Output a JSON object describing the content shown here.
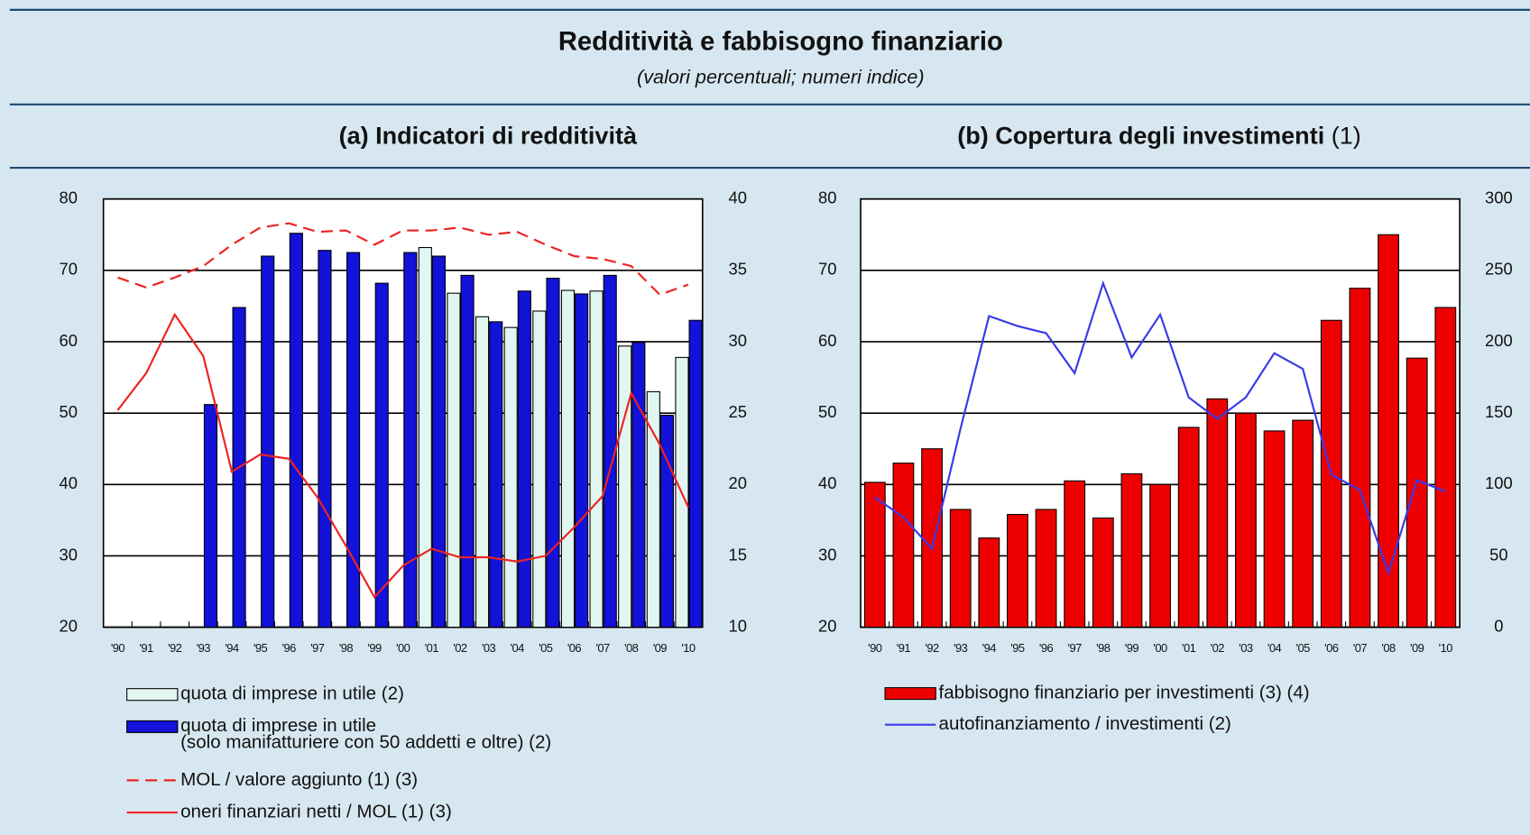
{
  "header": {
    "title": "Redditività e fabbisogno finanziario",
    "subtitle": "(valori percentuali; numeri indice)"
  },
  "chart_data": [
    {
      "type": "bar",
      "title": "(a) Indicatori di redditività",
      "categories": [
        "'90",
        "'91",
        "'92",
        "'93",
        "'94",
        "'95",
        "'96",
        "'97",
        "'98",
        "'99",
        "'00",
        "'01",
        "'02",
        "'03",
        "'04",
        "'05",
        "'06",
        "'07",
        "'08",
        "'09",
        "'10"
      ],
      "ylim": [
        20,
        80
      ],
      "yticks": [
        20,
        30,
        40,
        50,
        60,
        70,
        80
      ],
      "y2lim": [
        10,
        40
      ],
      "y2ticks": [
        10,
        15,
        20,
        25,
        30,
        35,
        40
      ],
      "grid": true,
      "series": [
        {
          "name": "quota di imprese in utile (2)",
          "type": "bar",
          "color": "#e2f6f1",
          "values": [
            null,
            null,
            null,
            null,
            null,
            null,
            null,
            null,
            null,
            null,
            null,
            73.2,
            66.8,
            63.5,
            62,
            64.3,
            67.2,
            67.1,
            59.4,
            53,
            57.8
          ]
        },
        {
          "name": "quota di imprese in utile\n(solo manifatturiere con 50 addetti e oltre) (2)",
          "type": "bar",
          "color": "#1212d8",
          "values": [
            null,
            null,
            null,
            51.2,
            64.8,
            72,
            75.2,
            72.8,
            72.5,
            68.2,
            72.5,
            72,
            69.3,
            62.8,
            67.1,
            68.9,
            66.7,
            69.3,
            59.9,
            49.7,
            63
          ]
        },
        {
          "name": "MOL / valore aggiunto (1) (3)",
          "type": "line",
          "dash": true,
          "axis": "y2",
          "color": "#ee2222",
          "values": [
            34.5,
            33.8,
            34.5,
            35.3,
            36.8,
            38,
            38.3,
            37.7,
            37.8,
            36.8,
            37.8,
            37.8,
            38,
            37.5,
            37.7,
            36.8,
            36,
            35.8,
            35.3,
            33.3,
            34
          ]
        },
        {
          "name": "oneri finanziari netti / MOL (1) (3)",
          "type": "line",
          "axis": "y2",
          "color": "#ee2222",
          "values": [
            25.2,
            27.8,
            31.9,
            29,
            20.9,
            22.1,
            21.8,
            19.1,
            15.7,
            12.1,
            14.3,
            15.5,
            14.9,
            14.9,
            14.6,
            15,
            17,
            19.2,
            26.4,
            22.8,
            18.4
          ]
        }
      ]
    },
    {
      "type": "bar",
      "title": "(b) Copertura degli investimenti",
      "title_note": "(1)",
      "categories": [
        "'90",
        "'91",
        "'92",
        "'93",
        "'94",
        "'95",
        "'96",
        "'97",
        "'98",
        "'99",
        "'00",
        "'01",
        "'02",
        "'03",
        "'04",
        "'05",
        "'06",
        "'07",
        "'08",
        "'09",
        "'10"
      ],
      "ylim": [
        20,
        80
      ],
      "yticks": [
        20,
        30,
        40,
        50,
        60,
        70,
        80
      ],
      "y2lim": [
        0,
        300
      ],
      "y2ticks": [
        0,
        50,
        100,
        150,
        200,
        250,
        300
      ],
      "grid": true,
      "series": [
        {
          "name": "fabbisogno finanziario per investimenti (3) (4)",
          "type": "bar",
          "color": "#ee0000",
          "values": [
            40.3,
            43,
            45,
            36.5,
            32.5,
            35.8,
            36.5,
            40.5,
            35.3,
            41.5,
            40,
            48,
            52,
            50,
            47.5,
            49,
            63,
            67.5,
            75,
            57.7,
            64.8
          ]
        },
        {
          "name": "autofinanziamento / investimenti (2)",
          "type": "line",
          "axis": "y2",
          "color": "#3a3ae8",
          "values": [
            91,
            77,
            55,
            139,
            218,
            211,
            206,
            178,
            241,
            189,
            219,
            161,
            146,
            161,
            192,
            181,
            107,
            96,
            38,
            103,
            95
          ]
        }
      ]
    }
  ]
}
